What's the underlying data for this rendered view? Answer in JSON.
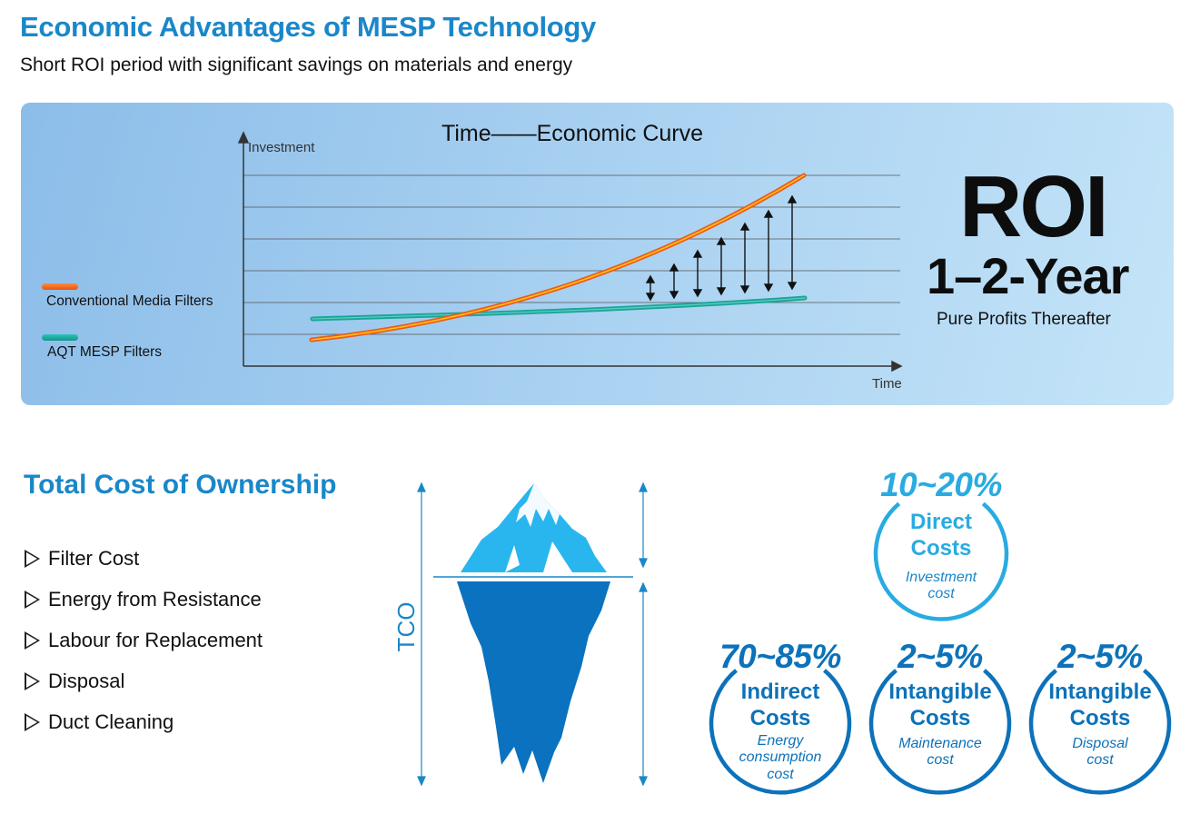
{
  "header": {
    "title": "Economic Advantages of MESP Technology",
    "subtitle": "Short ROI period with significant savings on materials and energy"
  },
  "roi_panel": {
    "chart_title": "Time——Economic Curve",
    "y_axis_label": "Investment",
    "x_axis_label": "Time",
    "legend": [
      {
        "label": "Conventional Media Filters",
        "color": "#ef6c1b"
      },
      {
        "label": "AQT MESP Filters",
        "color": "#19a59a"
      }
    ],
    "roi_heading": "ROI",
    "roi_period": "1–2-Year",
    "roi_note": "Pure Profits Thereafter"
  },
  "tco": {
    "title": "Total Cost of Ownership",
    "items": [
      "Filter Cost",
      "Energy from Resistance",
      "Labour for Replacement",
      "Disposal",
      "Duct Cleaning"
    ],
    "axis_label": "TCO",
    "categories": [
      {
        "percent": "10~20%",
        "name_line1": "Direct",
        "name_line2": "Costs",
        "detail": [
          "Investment",
          "cost"
        ],
        "color": "#29abe2"
      },
      {
        "percent": "70~85%",
        "name_line1": "Indirect",
        "name_line2": "Costs",
        "detail": [
          "Energy",
          "consumption",
          "cost"
        ],
        "color": "#0c72ba"
      },
      {
        "percent": "2~5%",
        "name_line1": "Intangible",
        "name_line2": "Costs",
        "detail": [
          "Maintenance",
          "cost"
        ],
        "color": "#0c72ba"
      },
      {
        "percent": "2~5%",
        "name_line1": "Intangible",
        "name_line2": "Costs",
        "detail": [
          "Disposal",
          "cost"
        ],
        "color": "#0c72ba"
      }
    ]
  },
  "colors": {
    "title_blue": "#1a87c9",
    "panel_blue": "#a6cff0",
    "ice_light": "#29b6ee",
    "ice_dark": "#0a72be"
  }
}
